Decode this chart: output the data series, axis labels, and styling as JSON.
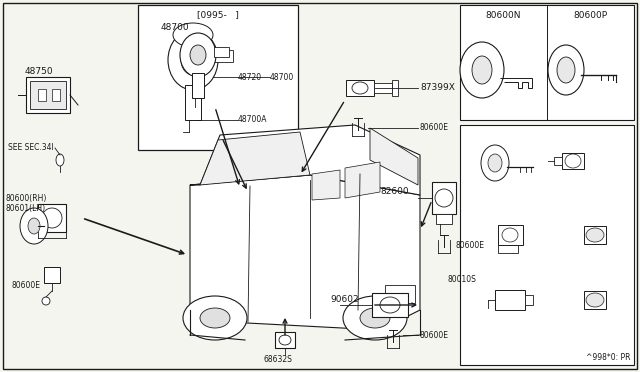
{
  "bg_color": "#f5f5f0",
  "line_color": "#1a1a1a",
  "text_color": "#1a1a1a",
  "labels": {
    "top_left_1": "48700",
    "top_left_2": "48750",
    "inset_title": "[0995-   ]",
    "inset_1": "48720",
    "inset_2": "48700",
    "inset_3": "48700A",
    "see_sec": "SEE SEC.34I",
    "door_rh": "80600(RH)",
    "door_lh": "80601(LH)",
    "bottom_left_e": "80600E",
    "bottom_center": "68632S",
    "right_87399x": "87399X",
    "right_80600e_1": "80600E",
    "right_82600": "82600",
    "right_80010s": "80010S",
    "right_80600e_2": "80600E",
    "right_90602": "90602",
    "right_80600e_3": "80600E",
    "top_right_N": "80600N",
    "top_right_P": "80600P",
    "bottom_right_code": "^998*0: PR"
  },
  "font_size": 6.5,
  "font_size_sm": 5.5
}
